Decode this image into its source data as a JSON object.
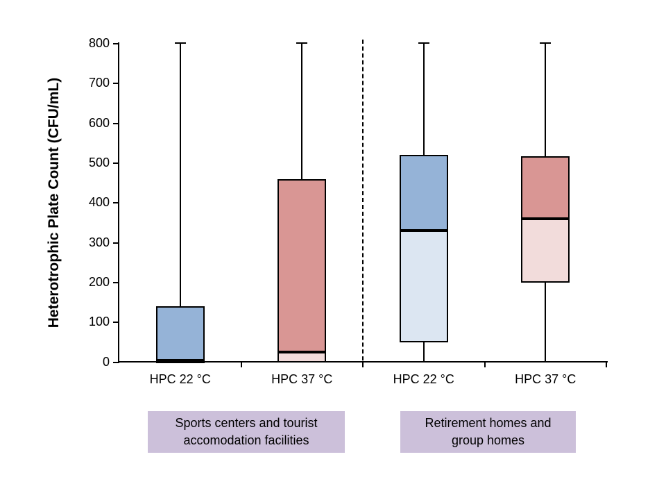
{
  "chart_data": {
    "type": "boxplot",
    "title": "",
    "xlabel": "",
    "ylabel": "Heterotrophic Plate Count (CFU/mL)",
    "ylim": [
      0,
      800
    ],
    "yticks": [
      0,
      100,
      200,
      300,
      400,
      500,
      600,
      700,
      800
    ],
    "grid": false,
    "legend": "none",
    "categories": [
      "HPC 22 °C",
      "HPC 37 °C",
      "HPC 22 °C",
      "HPC 37 °C"
    ],
    "boxes": [
      {
        "label": "HPC 22 °C",
        "group": "Sports centers and tourist accomodation facilities",
        "min": 0,
        "q1": 0,
        "median": 5,
        "q3": 140,
        "max": 800,
        "color_upper": "#95B3D7",
        "color_lower": "#DCE6F2"
      },
      {
        "label": "HPC 37 °C",
        "group": "Sports centers and tourist accomodation facilities",
        "min": 0,
        "q1": 0,
        "median": 25,
        "q3": 460,
        "max": 800,
        "color_upper": "#D99694",
        "color_lower": "#F2DCDB"
      },
      {
        "label": "HPC 22 °C",
        "group": "Retirement homes and group homes",
        "min": 0,
        "q1": 50,
        "median": 330,
        "q3": 520,
        "max": 800,
        "color_upper": "#95B3D7",
        "color_lower": "#DCE6F2"
      },
      {
        "label": "HPC 37 °C",
        "group": "Retirement homes and group homes",
        "min": 0,
        "q1": 200,
        "median": 360,
        "q3": 518,
        "max": 800,
        "color_upper": "#D99694",
        "color_lower": "#F2DCDB"
      }
    ],
    "group_labels": [
      {
        "lines": [
          "Sports centers and tourist",
          "accomodation facilities"
        ]
      },
      {
        "lines": [
          "Retirement homes and",
          "group homes"
        ]
      }
    ],
    "separator": "dashed vertical line between the two facility groups",
    "colors": {
      "label_bg": "#CCC0DA",
      "axis": "#000000",
      "box_border": "#000000",
      "blue_upper": "#95B3D7",
      "blue_lower": "#DCE6F2",
      "red_upper": "#D99694",
      "red_lower": "#F2DCDB"
    }
  }
}
